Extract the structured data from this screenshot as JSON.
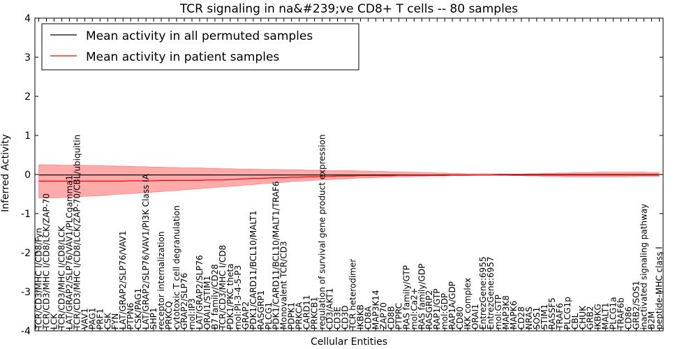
{
  "chart_data": {
    "type": "line",
    "title": "TCR signaling in na&#239;ve CD8+ T cells -- 80 samples",
    "xlabel": "Cellular Entities",
    "ylabel": "Inferred Activity",
    "ylim": [
      -4,
      4
    ],
    "yticks": [
      "-4",
      "-3",
      "-2",
      "-1",
      "0",
      "1",
      "2",
      "3",
      "4"
    ],
    "grid": false,
    "legend_position": "top-left",
    "categories": [
      "TCR/CD3/MHC I/CD8/Fyn",
      "TCR/CD3/MHC I/CD8/LCK/ZAP-70",
      "LCK",
      "TCR/CD3/MHC I/CD8/LCK",
      "LAT/GRAP2/SLP76/VAV1/PLCgamma1",
      "TCR/CD3/MHC I/CD8/LCK/ZAP-70/CBL/ubiquitin",
      "VAV1",
      "PAG1",
      "PRF1",
      "CSK",
      "FYN",
      "LAT/GRAP2/SLP76/VAV1",
      "PTPN6",
      "CSK/PAG1",
      "LAT/GRAP2/SLP76/VAV1/PI3K Class IA",
      "SHP1",
      "receptor internalization",
      "PRKCQ",
      "cytotoxic T cell degranulation",
      "GRAP2/SLP76",
      "mol:IP3",
      "LAT/GRAP2/SLP76",
      "ORAI1/STIM1",
      "B7 family/CD28",
      "TCR/CD3/MHC I/CD8",
      "PDK1/PKC theta",
      "mol:PI-3-4-5-P3",
      "GRAP2",
      "PDK1/CARD11/BCL10/MALT1",
      "RASGRP1",
      "PLCG1",
      "PDK1/CARD11/BCL10/MALT1/TRAF6",
      "Monovalent TCR/CD3",
      "PDPK1",
      "PRKCA",
      "CARD11",
      "PRKCB1",
      "regulation of survival gene product expression",
      "CD3/AKT1",
      "CD3E",
      "CD3D",
      "TCR heterodimer",
      "IKBKB",
      "CD8A",
      "MAP3K14",
      "ZAP70",
      "CD8B",
      "PTPRC",
      "RAS family/GTP",
      "mol:Ca2+",
      "RAS family/GDP",
      "RASGRP2",
      "RAP1/GTP",
      "mol:GDP",
      "RAP1A/GDP",
      "CD80",
      "IKK complex",
      "ORAI1",
      "EntrezGene:6955",
      "EntrezGene:6957",
      "mol:GTP",
      "MAP3K8",
      "MAPK6",
      "CD28",
      "NRAS",
      "SOS1",
      "STIM1",
      "RASSF5",
      "TRAF6",
      "PLCG1p",
      "CBL",
      "CHUK",
      "GRB2",
      "IKBKG",
      "MALT1",
      "PLCG1a",
      "TRAF6b",
      "CD86",
      "GRB2/SOS1",
      "inactivated signaling pathway",
      "B2M",
      "peptide-MHC class I"
    ],
    "series": [
      {
        "name": "Mean activity in all permuted samples",
        "color": "#000000",
        "values": [
          -0.01,
          -0.01,
          -0.01,
          -0.01,
          -0.01,
          -0.01,
          -0.01,
          -0.01,
          -0.01,
          -0.01,
          -0.01,
          -0.01,
          -0.01,
          -0.01,
          -0.01,
          -0.01,
          -0.01,
          -0.01,
          -0.01,
          -0.01,
          -0.01,
          -0.01,
          -0.01,
          -0.01,
          -0.01,
          -0.01,
          -0.01,
          -0.01,
          -0.01,
          -0.01,
          -0.01,
          -0.01,
          -0.01,
          -0.01,
          -0.01,
          -0.01,
          -0.01,
          -0.01,
          -0.01,
          -0.01,
          -0.01,
          -0.01,
          -0.01,
          -0.01,
          -0.01,
          -0.01,
          -0.01,
          -0.01,
          -0.01,
          -0.01,
          -0.01,
          -0.01,
          -0.01,
          -0.01,
          -0.01,
          -0.01,
          -0.01,
          -0.01,
          -0.01,
          -0.01,
          -0.01,
          -0.01,
          -0.01,
          -0.01,
          -0.01,
          -0.01,
          -0.01,
          -0.01,
          -0.01,
          -0.01,
          -0.01,
          -0.01,
          -0.01,
          -0.01,
          -0.01,
          -0.01,
          -0.01,
          -0.01,
          -0.01,
          -0.01,
          -0.01,
          -0.01
        ]
      },
      {
        "name": "Mean activity in patient samples",
        "color": "#ff0000",
        "band_color": "#ff6666",
        "values": [
          -0.17,
          -0.17,
          -0.17,
          -0.17,
          -0.17,
          -0.17,
          -0.17,
          -0.17,
          -0.17,
          -0.17,
          -0.17,
          -0.17,
          -0.16,
          -0.16,
          -0.16,
          -0.16,
          -0.15,
          -0.15,
          -0.15,
          -0.15,
          -0.15,
          -0.15,
          -0.14,
          -0.14,
          -0.14,
          -0.13,
          -0.12,
          -0.11,
          -0.1,
          -0.1,
          -0.09,
          -0.08,
          -0.08,
          -0.07,
          -0.07,
          -0.06,
          -0.06,
          -0.05,
          -0.05,
          -0.04,
          -0.04,
          -0.04,
          -0.03,
          -0.03,
          -0.03,
          -0.03,
          -0.03,
          -0.02,
          -0.02,
          -0.02,
          -0.02,
          -0.02,
          -0.02,
          -0.02,
          -0.01,
          -0.01,
          -0.01,
          -0.01,
          -0.01,
          -0.01,
          0.0,
          0.0,
          0.0,
          0.0,
          0.0,
          0.0,
          0.0,
          0.0,
          0.0,
          0.0,
          0.0,
          0.0,
          0.0,
          0.0,
          0.0,
          0.0,
          0.0,
          0.0,
          0.0,
          0.0,
          0.0,
          0.0
        ],
        "upper": [
          0.25,
          0.25,
          0.25,
          0.24,
          0.24,
          0.24,
          0.24,
          0.23,
          0.23,
          0.22,
          0.22,
          0.21,
          0.21,
          0.2,
          0.2,
          0.19,
          0.19,
          0.18,
          0.18,
          0.17,
          0.17,
          0.17,
          0.16,
          0.16,
          0.15,
          0.15,
          0.14,
          0.14,
          0.14,
          0.13,
          0.13,
          0.13,
          0.12,
          0.12,
          0.12,
          0.11,
          0.11,
          0.11,
          0.1,
          0.1,
          0.1,
          0.1,
          0.09,
          0.09,
          0.08,
          0.08,
          0.07,
          0.07,
          0.06,
          0.06,
          0.05,
          0.05,
          0.04,
          0.04,
          0.03,
          0.03,
          0.02,
          0.02,
          0.02,
          0.02,
          0.01,
          0.01,
          0.01,
          0.01,
          0.02,
          0.02,
          0.03,
          0.03,
          0.04,
          0.04,
          0.05,
          0.05,
          0.05,
          0.06,
          0.06,
          0.06,
          0.06,
          0.06,
          0.06,
          0.06,
          0.05,
          0.05
        ],
        "lower": [
          -0.6,
          -0.6,
          -0.6,
          -0.59,
          -0.58,
          -0.57,
          -0.56,
          -0.55,
          -0.54,
          -0.53,
          -0.51,
          -0.5,
          -0.49,
          -0.48,
          -0.46,
          -0.45,
          -0.44,
          -0.42,
          -0.41,
          -0.39,
          -0.38,
          -0.36,
          -0.35,
          -0.33,
          -0.32,
          -0.3,
          -0.29,
          -0.27,
          -0.26,
          -0.24,
          -0.23,
          -0.21,
          -0.2,
          -0.18,
          -0.17,
          -0.16,
          -0.15,
          -0.14,
          -0.13,
          -0.12,
          -0.11,
          -0.1,
          -0.09,
          -0.09,
          -0.08,
          -0.07,
          -0.07,
          -0.06,
          -0.06,
          -0.05,
          -0.05,
          -0.04,
          -0.04,
          -0.04,
          -0.03,
          -0.03,
          -0.03,
          -0.02,
          -0.02,
          -0.02,
          -0.02,
          -0.02,
          -0.03,
          -0.03,
          -0.04,
          -0.04,
          -0.05,
          -0.05,
          -0.05,
          -0.06,
          -0.06,
          -0.06,
          -0.06,
          -0.06,
          -0.06,
          -0.06,
          -0.06,
          -0.06,
          -0.05,
          -0.05,
          -0.05,
          -0.05
        ]
      }
    ]
  }
}
